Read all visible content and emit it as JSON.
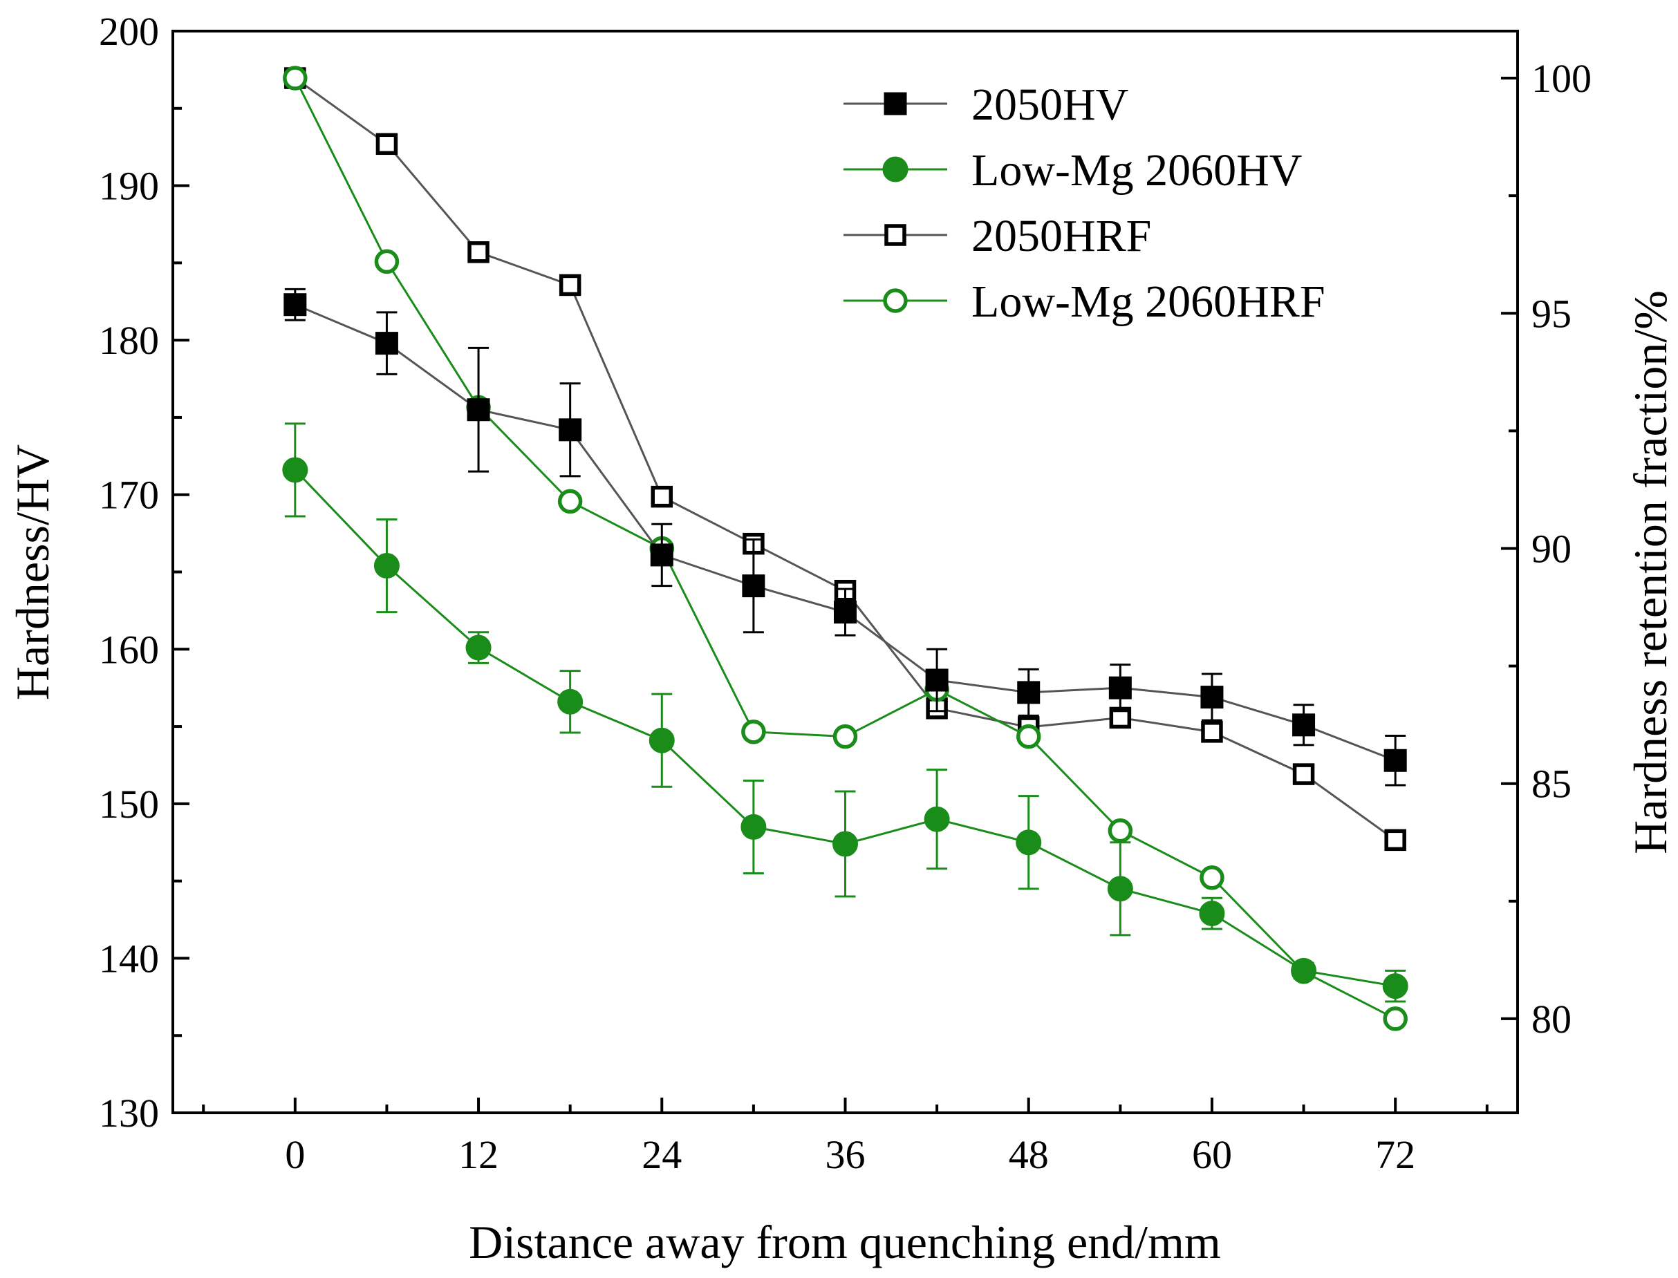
{
  "chart_data": {
    "type": "line",
    "xlabel": "Distance away from quenching end/mm",
    "ylabel": "Hardness/HV",
    "y2label": "Hardness retention fraction/%",
    "xlim": [
      -8,
      80
    ],
    "ylim": [
      130,
      200
    ],
    "y2lim": [
      78,
      101
    ],
    "x_ticks": [
      0,
      12,
      24,
      36,
      48,
      60,
      72
    ],
    "y_ticks": [
      130,
      140,
      150,
      160,
      170,
      180,
      190,
      200
    ],
    "y2_ticks": [
      80,
      85,
      90,
      95,
      100
    ],
    "legend_position": "top-right",
    "x": [
      0,
      6,
      12,
      18,
      24,
      30,
      36,
      42,
      48,
      54,
      60,
      66,
      72
    ],
    "series": [
      {
        "name": "2050HV",
        "axis": "left",
        "marker": "square",
        "filled": true,
        "color": "#000000",
        "line_color": "#555555",
        "values": [
          182.3,
          179.8,
          175.5,
          174.2,
          166.1,
          164.1,
          162.4,
          158.0,
          157.2,
          157.5,
          156.9,
          155.1,
          152.8
        ],
        "errors": [
          1.0,
          2.0,
          4.0,
          3.0,
          2.0,
          3.0,
          1.5,
          2.0,
          1.5,
          1.5,
          1.5,
          1.3,
          1.6
        ]
      },
      {
        "name": "Low-Mg 2060HV",
        "axis": "left",
        "marker": "circle",
        "filled": true,
        "color": "#1a8c1a",
        "line_color": "#1a8c1a",
        "values": [
          171.6,
          165.4,
          160.1,
          156.6,
          154.1,
          148.5,
          147.4,
          149.0,
          147.5,
          144.5,
          142.9,
          139.2,
          138.2
        ],
        "errors": [
          3.0,
          3.0,
          1.0,
          2.0,
          3.0,
          3.0,
          3.4,
          3.2,
          3.0,
          3.0,
          1.0,
          0.5,
          1.0
        ]
      },
      {
        "name": "2050HRF",
        "axis": "right",
        "marker": "square",
        "filled": false,
        "color": "#000000",
        "line_color": "#555555",
        "values": [
          100,
          98.6,
          96.3,
          95.6,
          91.1,
          90.1,
          89.1,
          86.6,
          86.2,
          86.4,
          86.1,
          85.2,
          83.8
        ]
      },
      {
        "name": "Low-Mg 2060HRF",
        "axis": "right",
        "marker": "circle",
        "filled": false,
        "color": "#1a8c1a",
        "line_color": "#1a8c1a",
        "values": [
          100,
          96.1,
          93.0,
          91.0,
          90.0,
          86.1,
          86.0,
          87.0,
          86.0,
          84.0,
          83.0,
          81.0,
          80.0
        ]
      }
    ]
  }
}
